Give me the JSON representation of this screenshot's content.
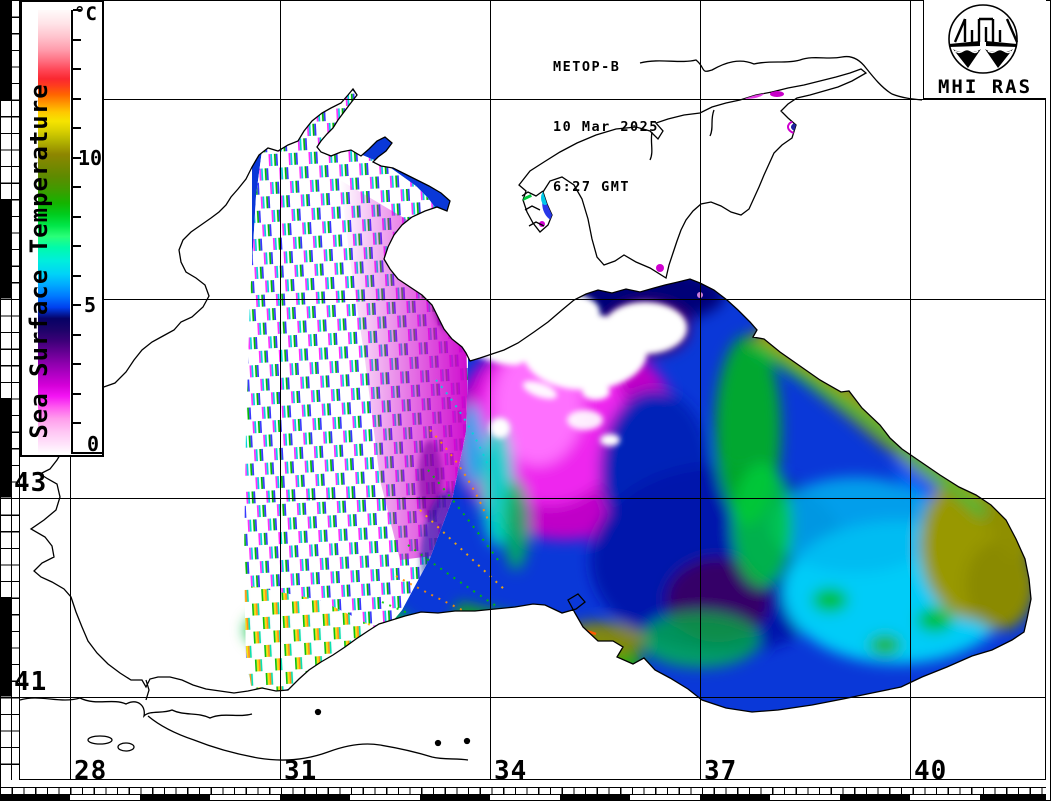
{
  "header": {
    "satellite": "METOP-B",
    "date": "10 Mar 2025",
    "time": "6:27 GMT"
  },
  "logo": {
    "caption": "MHI RAS"
  },
  "colorbar": {
    "title": "Sea Surface Temperature",
    "unit": "°C",
    "min": 0,
    "max": 15,
    "minor_tick_step": 1,
    "labeled_ticks": [
      {
        "value": 10,
        "label": "10"
      },
      {
        "value": 5,
        "label": "5"
      },
      {
        "value": 0,
        "label": "0"
      }
    ],
    "gradient_stops": [
      {
        "at": 0.0,
        "color": "#ffffff"
      },
      {
        "at": 0.02,
        "color": "#ffe6fb"
      },
      {
        "at": 0.05,
        "color": "#ffc6f4"
      },
      {
        "at": 0.08,
        "color": "#ff9cec"
      },
      {
        "at": 0.105,
        "color": "#ff5cf0"
      },
      {
        "at": 0.13,
        "color": "#f414f4"
      },
      {
        "at": 0.155,
        "color": "#d400d8"
      },
      {
        "at": 0.18,
        "color": "#b000c4"
      },
      {
        "at": 0.205,
        "color": "#8c00ac"
      },
      {
        "at": 0.23,
        "color": "#640092"
      },
      {
        "at": 0.255,
        "color": "#3c0078"
      },
      {
        "at": 0.28,
        "color": "#1c0368"
      },
      {
        "at": 0.305,
        "color": "#060266"
      },
      {
        "at": 0.33,
        "color": "#0040ee"
      },
      {
        "at": 0.355,
        "color": "#0078ff"
      },
      {
        "at": 0.38,
        "color": "#00a8ff"
      },
      {
        "at": 0.405,
        "color": "#00d2f8"
      },
      {
        "at": 0.435,
        "color": "#00eedd"
      },
      {
        "at": 0.465,
        "color": "#00fbaa"
      },
      {
        "at": 0.49,
        "color": "#2aff78"
      },
      {
        "at": 0.515,
        "color": "#00e648"
      },
      {
        "at": 0.54,
        "color": "#00cc1e"
      },
      {
        "at": 0.565,
        "color": "#14b400"
      },
      {
        "at": 0.595,
        "color": "#3e9c00"
      },
      {
        "at": 0.625,
        "color": "#5e8a00"
      },
      {
        "at": 0.675,
        "color": "#8e8600"
      },
      {
        "at": 0.705,
        "color": "#b4b400"
      },
      {
        "at": 0.73,
        "color": "#dcd200"
      },
      {
        "at": 0.75,
        "color": "#f6e400"
      },
      {
        "at": 0.77,
        "color": "#ffc800"
      },
      {
        "at": 0.79,
        "color": "#ff9600"
      },
      {
        "at": 0.81,
        "color": "#ff6400"
      },
      {
        "at": 0.83,
        "color": "#fe3c1e"
      },
      {
        "at": 0.845,
        "color": "#fa2830"
      },
      {
        "at": 0.865,
        "color": "#ff4656"
      },
      {
        "at": 0.885,
        "color": "#ff6e80"
      },
      {
        "at": 0.91,
        "color": "#ff9cac"
      },
      {
        "at": 0.94,
        "color": "#ffc4ce"
      },
      {
        "at": 0.97,
        "color": "#ffe4e8"
      },
      {
        "at": 1.0,
        "color": "#fffafa"
      }
    ]
  },
  "grid": {
    "lat_labels": [
      {
        "label": "43"
      },
      {
        "label": "41"
      }
    ],
    "lon_labels": [
      {
        "label": "28"
      },
      {
        "label": "31"
      },
      {
        "label": "34"
      },
      {
        "label": "37"
      },
      {
        "label": "40"
      }
    ]
  }
}
